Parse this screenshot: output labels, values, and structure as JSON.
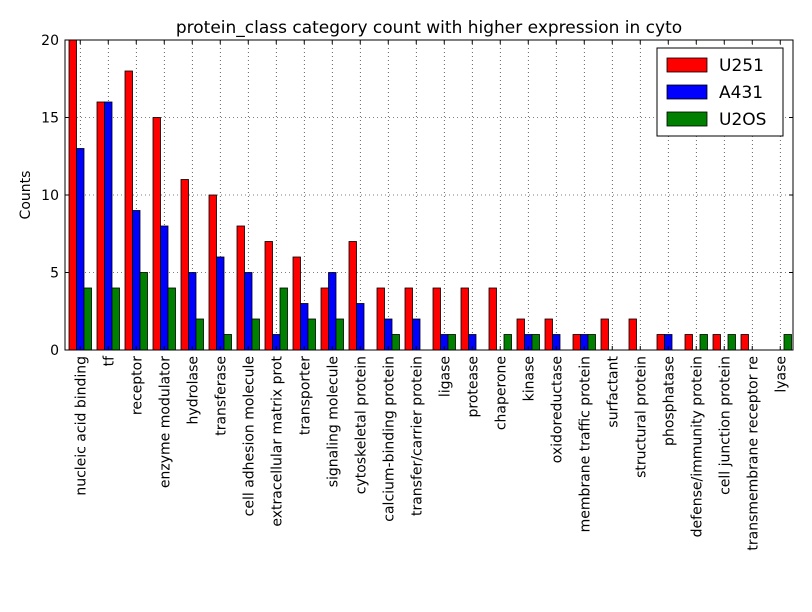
{
  "chart_data": {
    "type": "bar",
    "title": "protein_class category count with higher expression in cyto",
    "xlabel": "",
    "ylabel": "Counts",
    "ylim": [
      0,
      20
    ],
    "yticks": [
      0,
      5,
      10,
      15,
      20
    ],
    "grid": true,
    "legend_position": "top-right",
    "categories": [
      "nucleic acid binding",
      "tf",
      "receptor",
      "enzyme modulator",
      "hydrolase",
      "transferase",
      "cell adhesion molecule",
      "extracellular matrix prot",
      "transporter",
      "signaling molecule",
      "cytoskeletal protein",
      "calcium-binding protein",
      "transfer/carrier protein",
      "ligase",
      "protease",
      "chaperone",
      "kinase",
      "oxidoreductase",
      "membrane traffic protein",
      "surfactant",
      "structural protein",
      "phosphatase",
      "defense/immunity protein",
      "cell junction protein",
      "transmembrane receptor re",
      "lyase"
    ],
    "series": [
      {
        "name": "U251",
        "color": "#ff0000",
        "values": [
          20,
          16,
          18,
          15,
          11,
          10,
          8,
          7,
          6,
          4,
          7,
          4,
          4,
          4,
          4,
          4,
          2,
          2,
          1,
          2,
          2,
          1,
          1,
          1,
          1,
          0
        ]
      },
      {
        "name": "A431",
        "color": "#0000ff",
        "values": [
          13,
          16,
          9,
          8,
          5,
          6,
          5,
          1,
          3,
          5,
          3,
          2,
          2,
          1,
          1,
          0,
          1,
          1,
          1,
          0,
          0,
          1,
          0,
          0,
          0,
          0
        ]
      },
      {
        "name": "U2OS",
        "color": "#008000",
        "values": [
          4,
          4,
          5,
          4,
          2,
          1,
          2,
          4,
          2,
          2,
          0,
          1,
          0,
          1,
          0,
          1,
          1,
          0,
          1,
          0,
          0,
          0,
          1,
          1,
          0,
          1
        ]
      }
    ]
  }
}
